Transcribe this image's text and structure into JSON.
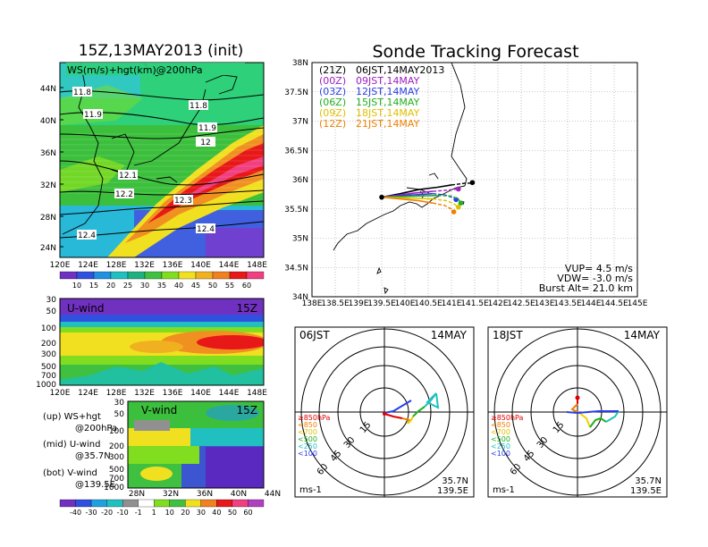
{
  "main_title": "Sonde Tracking Forecast",
  "map_panel": {
    "title": "15Z,13MAY2013 (init)",
    "label": "WS(m/s)+hgt(km)@200hPa",
    "lat_ticks": [
      "44N",
      "40N",
      "36N",
      "32N",
      "28N",
      "24N"
    ],
    "lon_ticks": [
      "120E",
      "124E",
      "128E",
      "132E",
      "136E",
      "140E",
      "144E",
      "148E"
    ],
    "contour_labels": [
      "11.8",
      "11.9",
      "11.8",
      "11.9",
      "12",
      "12.1",
      "12.2",
      "12.3",
      "12.4",
      "12.4"
    ],
    "colorbar_ticks": [
      "10",
      "15",
      "20",
      "25",
      "30",
      "35",
      "40",
      "45",
      "50",
      "55",
      "60"
    ]
  },
  "uwind_panel": {
    "label": "U-wind",
    "time": "15Z",
    "p_ticks": [
      "30",
      "50",
      "100",
      "200",
      "300",
      "500",
      "700",
      "1000"
    ],
    "lon_ticks": [
      "120E",
      "124E",
      "128E",
      "132E",
      "136E",
      "140E",
      "144E",
      "148E"
    ]
  },
  "vwind_panel": {
    "label": "V-wind",
    "time": "15Z",
    "p_ticks": [
      "30",
      "50",
      "100",
      "200",
      "300",
      "500",
      "700",
      "1000"
    ],
    "lat_ticks": [
      "28N",
      "32N",
      "36N",
      "40N",
      "44N"
    ],
    "colorbar_ticks": [
      "-40",
      "-30",
      "-20",
      "-10",
      "-1",
      "1",
      "10",
      "20",
      "30",
      "40",
      "50",
      "60"
    ]
  },
  "notes": [
    {
      "a": "(up) WS+hgt",
      "b": "@200hPa"
    },
    {
      "a": "(mid) U-wind",
      "b": "@35.7N"
    },
    {
      "a": "(bot) V-wind",
      "b": "@139.5E"
    }
  ],
  "tracking": {
    "lat_ticks": [
      "38N",
      "37.5N",
      "37N",
      "36.5N",
      "36N",
      "35.5N",
      "35N",
      "34.5N",
      "34N"
    ],
    "lon_ticks": [
      "138E",
      "138.5E",
      "139E",
      "139.5E",
      "140E",
      "140.5E",
      "141E",
      "141.5E",
      "142E",
      "142.5E",
      "143E",
      "143.5E",
      "144E",
      "144.5E",
      "145E"
    ],
    "info": [
      "VUP= 4.5 m/s",
      "VDW= -3.0 m/s",
      "Burst Alt= 21.0 km"
    ],
    "legend": [
      {
        "utc": "(21Z)",
        "jst": "06JST,14MAY2013",
        "color": "#000000"
      },
      {
        "utc": "(00Z)",
        "jst": "09JST,14MAY",
        "color": "#a020c0"
      },
      {
        "utc": "(03Z)",
        "jst": "12JST,14MAY",
        "color": "#2a3ee8"
      },
      {
        "utc": "(06Z)",
        "jst": "15JST,14MAY",
        "color": "#20b020"
      },
      {
        "utc": "(09Z)",
        "jst": "18JST,14MAY",
        "color": "#e0c000"
      },
      {
        "utc": "(12Z)",
        "jst": "21JST,14MAY",
        "color": "#f08000"
      }
    ]
  },
  "hodo_left": {
    "time": "06JST",
    "date": "14MAY",
    "ring_labels": [
      "15",
      "30",
      "45",
      "60"
    ],
    "levels": [
      "≥850hPa",
      "<850",
      "<700",
      "<500",
      "<250",
      "<100"
    ],
    "unit": "ms-1",
    "lat": "35.7N",
    "lon": "139.5E"
  },
  "hodo_right": {
    "time": "18JST",
    "date": "14MAY",
    "ring_labels": [
      "15",
      "30",
      "45",
      "60"
    ],
    "levels": [
      "≥850hPa",
      "<850",
      "<700",
      "<500",
      "<250",
      "<100"
    ],
    "unit": "ms-1",
    "lat": "35.7N",
    "lon": "139.5E"
  },
  "chart_data": [
    {
      "type": "line",
      "title": "Sonde Tracking Forecast",
      "xlim": [
        138,
        145
      ],
      "ylim": [
        34,
        38
      ],
      "series": [
        {
          "name": "(21Z) 06JST,14MAY2013",
          "color": "#000000",
          "x": [
            139.5,
            139.9,
            140.3,
            140.7,
            141.0,
            141.2,
            141.3,
            141.4,
            141.45
          ],
          "y": [
            35.7,
            35.76,
            35.83,
            35.87,
            35.91,
            35.93,
            35.94,
            35.94,
            35.95
          ]
        },
        {
          "name": "(00Z) 09JST,14MAY",
          "color": "#a020c0",
          "x": [
            139.5,
            139.8,
            140.2,
            140.6,
            140.9,
            141.05,
            141.15
          ],
          "y": [
            35.7,
            35.73,
            35.77,
            35.8,
            35.82,
            35.83,
            35.84
          ]
        },
        {
          "name": "(03Z) 12JST,14MAY",
          "color": "#2a3ee8",
          "x": [
            139.5,
            139.8,
            140.2,
            140.6,
            140.85,
            141.0,
            141.1
          ],
          "y": [
            35.7,
            35.72,
            35.74,
            35.76,
            35.74,
            35.7,
            35.66
          ]
        },
        {
          "name": "(06Z) 15JST,14MAY",
          "color": "#20b020",
          "x": [
            139.5,
            139.9,
            140.3,
            140.7,
            141.0,
            141.15,
            141.2
          ],
          "y": [
            35.7,
            35.71,
            35.72,
            35.73,
            35.72,
            35.67,
            35.6
          ]
        },
        {
          "name": "(09Z) 18JST,14MAY",
          "color": "#e0c000",
          "x": [
            139.5,
            139.9,
            140.3,
            140.6,
            140.9,
            141.05,
            141.15
          ],
          "y": [
            35.7,
            35.69,
            35.68,
            35.67,
            35.64,
            35.59,
            35.53
          ]
        },
        {
          "name": "(12Z) 21JST,14MAY",
          "color": "#f08000",
          "x": [
            139.5,
            139.9,
            140.3,
            140.6,
            140.85,
            141.0,
            141.05
          ],
          "y": [
            35.7,
            35.67,
            35.64,
            35.6,
            35.56,
            35.5,
            35.45
          ]
        }
      ]
    }
  ]
}
